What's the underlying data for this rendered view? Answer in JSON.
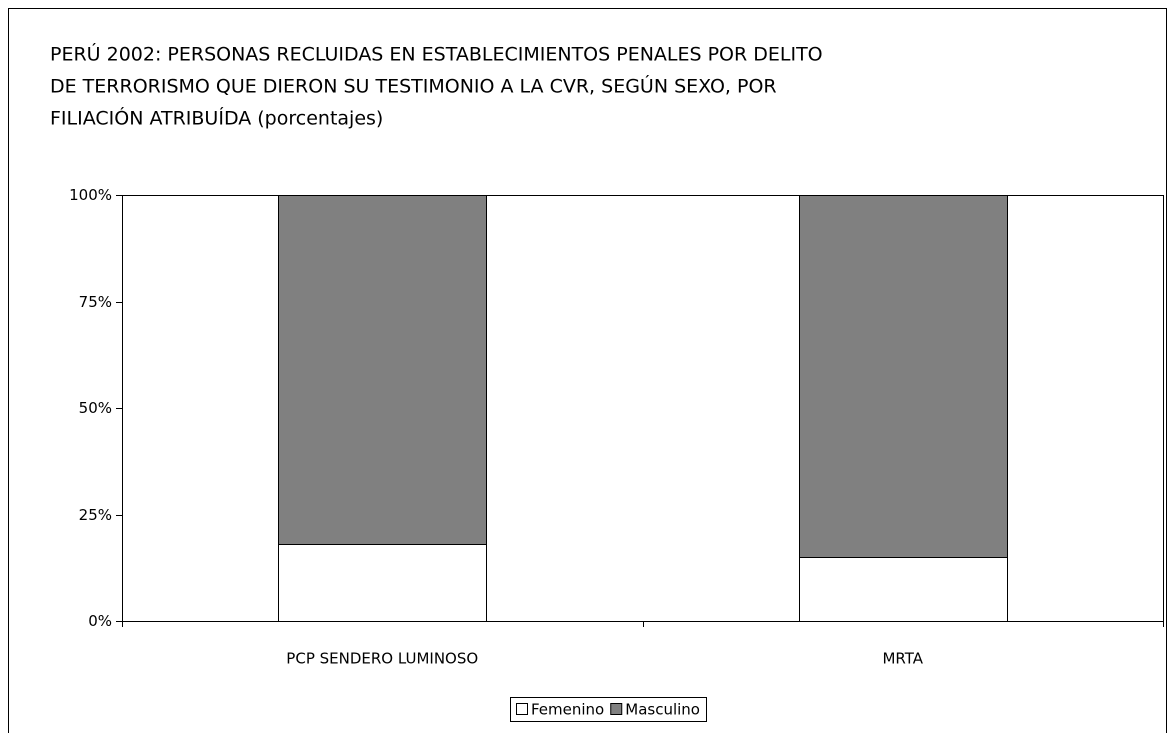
{
  "chart_data": {
    "type": "stacked_bar",
    "title": [
      "PERÚ 2002: PERSONAS RECLUIDAS EN ESTABLECIMIENTOS PENALES POR DELITO",
      "DE TERRORISMO QUE DIERON SU TESTIMONIO A LA CVR, SEGÚN SEXO, POR",
      "FILIACIÓN ATRIBUÍDA (porcentajes)"
    ],
    "categories": [
      "PCP SENDERO LUMINOSO",
      "MRTA"
    ],
    "series": [
      {
        "name": "Femenino",
        "color": "#ffffff",
        "values": [
          18,
          15
        ]
      },
      {
        "name": "Masculino",
        "color": "#808080",
        "values": [
          82,
          85
        ]
      }
    ],
    "ylim": [
      0,
      100
    ],
    "yticks": [
      {
        "value": 0,
        "label": "0%"
      },
      {
        "value": 25,
        "label": "25%"
      },
      {
        "value": 50,
        "label": "50%"
      },
      {
        "value": 75,
        "label": "75%"
      },
      {
        "value": 100,
        "label": "100%"
      }
    ],
    "legend": "bottom"
  }
}
